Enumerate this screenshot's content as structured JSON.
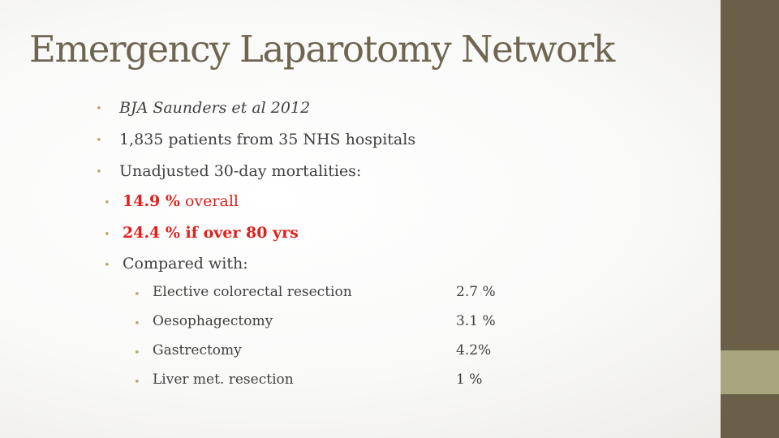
{
  "slide": {
    "title": "Emergency Laparotomy Network",
    "bullets": {
      "b1": "BJA Saunders et al 2012",
      "b2": "1,835 patients from 35 NHS hospitals",
      "b3": "Unadjusted 30-day mortalities:",
      "sub1_value": "14.9 %",
      "sub1_text": " overall",
      "sub2": "24.4 % if over 80 yrs",
      "sub3": "Compared with:"
    },
    "comparisons": [
      {
        "procedure": "Elective colorectal resection",
        "mortality": "2.7 %"
      },
      {
        "procedure": "Oesophagectomy",
        "mortality": "3.1 %"
      },
      {
        "procedure": "Gastrectomy",
        "mortality": "4.2%"
      },
      {
        "procedure": "Liver met. resection",
        "mortality": "1 %"
      }
    ]
  },
  "colors": {
    "title": "#6e6651",
    "body_text": "#3f3f3f",
    "highlight_red": "#e0201c",
    "bullet": "#b7a774",
    "side_bar": "#6b5f47",
    "side_accent": "#a8a57f"
  }
}
